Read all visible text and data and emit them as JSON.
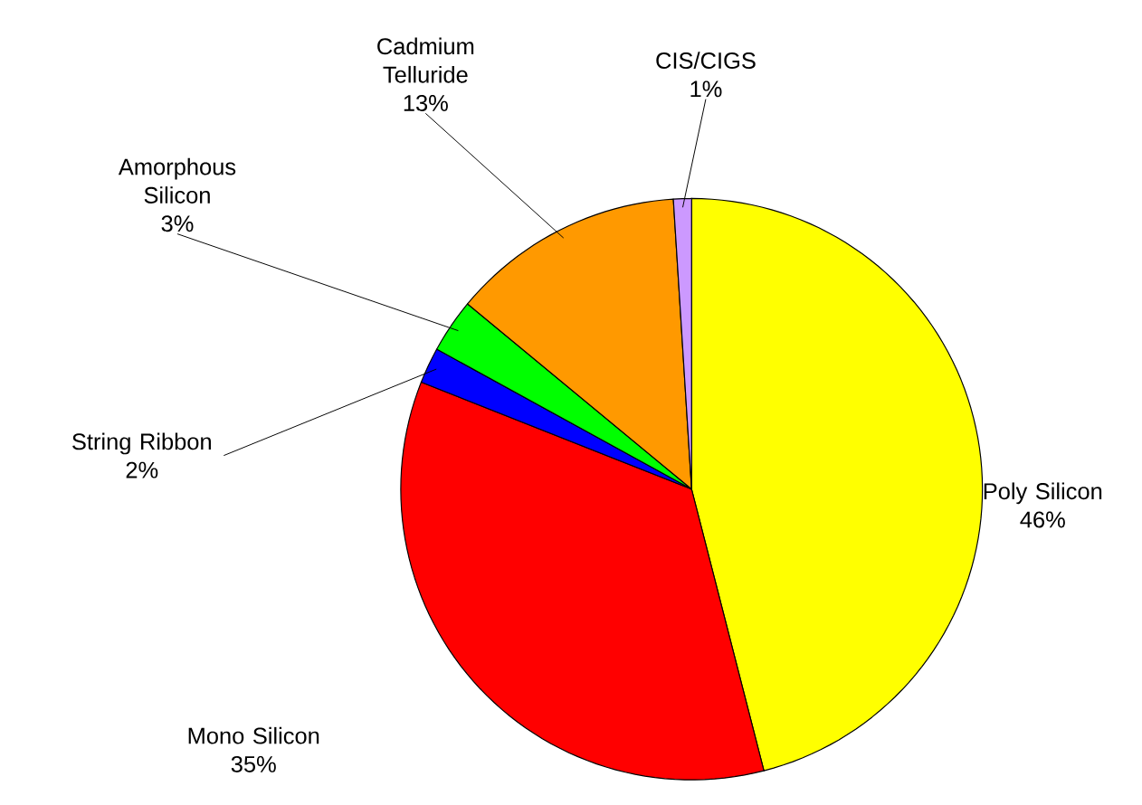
{
  "chart_data": {
    "type": "pie",
    "categories": [
      "Poly Silicon",
      "Mono Silicon",
      "String Ribbon",
      "Amorphous Silicon",
      "Cadmium Telluride",
      "CIS/CIGS"
    ],
    "values": [
      46,
      35,
      2,
      3,
      13,
      1
    ],
    "colors": [
      "#ffff00",
      "#ff0000",
      "#0000ff",
      "#00ff00",
      "#ff9900",
      "#cc99ff"
    ],
    "value_labels": [
      "46%",
      "35%",
      "2%",
      "3%",
      "13%",
      "1%"
    ]
  }
}
